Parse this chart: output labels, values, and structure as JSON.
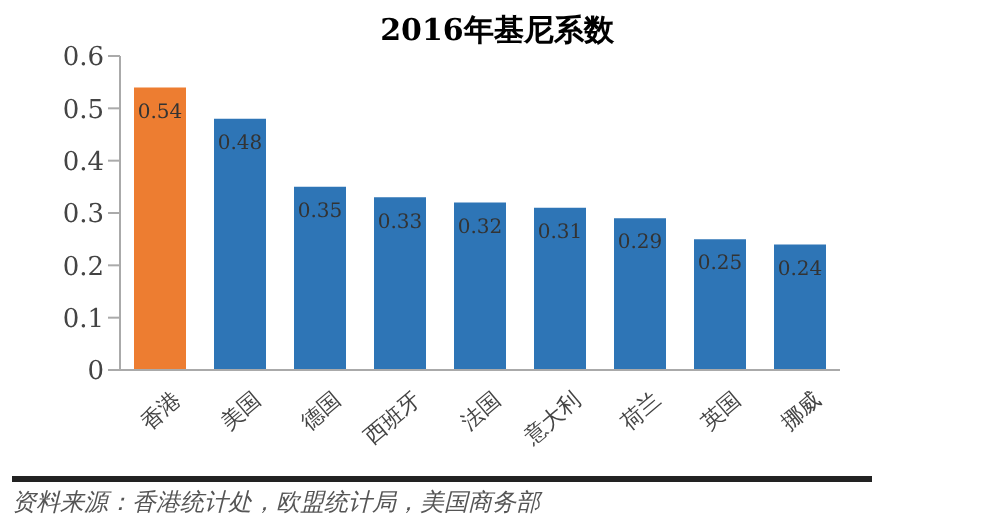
{
  "chart_data": {
    "type": "bar",
    "title": "2016年基尼系数",
    "categories": [
      "香港",
      "美国",
      "德国",
      "西班牙",
      "法国",
      "意大利",
      "荷兰",
      "英国",
      "挪威"
    ],
    "values": [
      0.54,
      0.48,
      0.35,
      0.33,
      0.32,
      0.31,
      0.29,
      0.25,
      0.24
    ],
    "colors": [
      "#ed7d31",
      "#2e75b6",
      "#2e75b6",
      "#2e75b6",
      "#2e75b6",
      "#2e75b6",
      "#2e75b6",
      "#2e75b6",
      "#2e75b6"
    ],
    "ylim": [
      0,
      0.6
    ],
    "yticks": [
      0,
      0.1,
      0.2,
      0.3,
      0.4,
      0.5,
      0.6
    ],
    "grid": false,
    "data_labels": true,
    "annotations": [
      "资料来源：香港统计处，欧盟统计局，美国商务部"
    ]
  }
}
